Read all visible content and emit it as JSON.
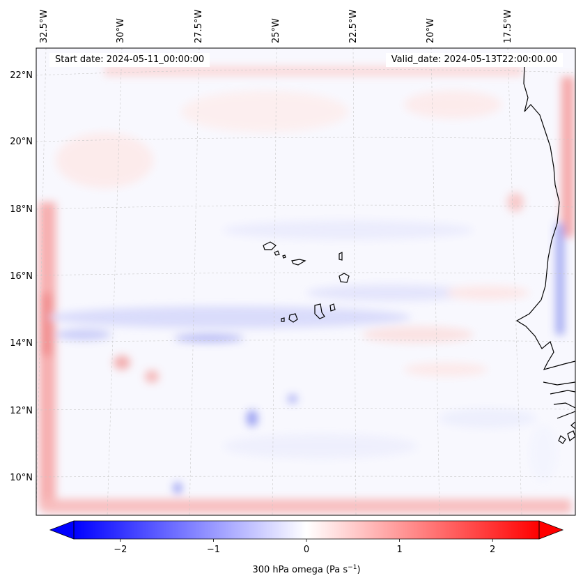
{
  "header": {
    "start_date": "Start date: 2024-05-11_00:00:00",
    "valid_date": "Valid_date: 2024-05-13T22:00:00.00"
  },
  "map": {
    "lon_labels": [
      "32.5°W",
      "30°W",
      "27.5°W",
      "25°W",
      "22.5°W",
      "20°W",
      "17.5°W"
    ],
    "lat_labels": [
      "22°N",
      "20°N",
      "18°N",
      "16°N",
      "14°N",
      "12°N",
      "10°N"
    ],
    "gridlines": "dashed",
    "coastline_color": "#000000"
  },
  "colorbar": {
    "ticks": [
      "−2",
      "−1",
      "0",
      "1",
      "2"
    ],
    "tick_values": [
      -2,
      -1,
      0,
      1,
      2
    ],
    "range": [
      -2.5,
      2.5
    ],
    "extend": "both",
    "label_prefix": "300 hPa omega (Pa s",
    "label_sup": "−1",
    "label_suffix": ")",
    "colormap": "bwr",
    "colors": {
      "min": "#0000ff",
      "mid": "#ffffff",
      "max": "#ff0000"
    }
  }
}
